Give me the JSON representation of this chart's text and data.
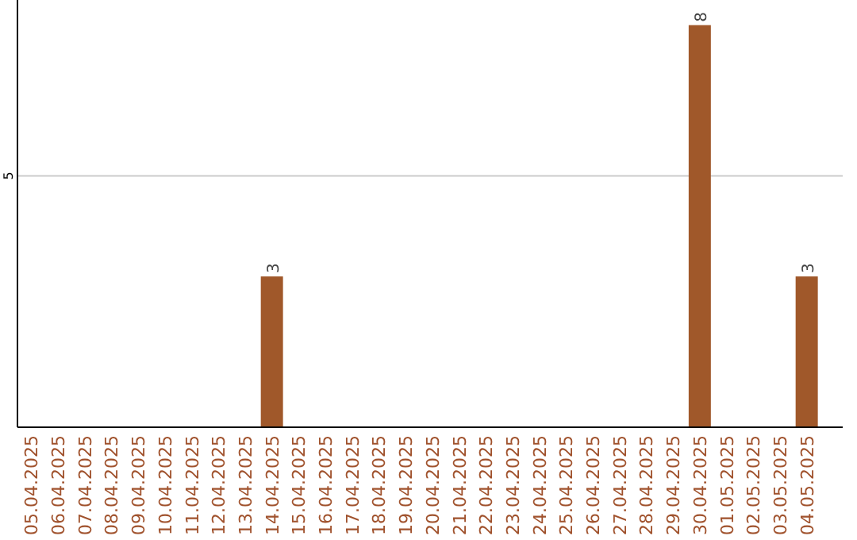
{
  "chart_data": {
    "type": "bar",
    "categories": [
      "05.04.2025",
      "06.04.2025",
      "07.04.2025",
      "08.04.2025",
      "09.04.2025",
      "10.04.2025",
      "11.04.2025",
      "12.04.2025",
      "13.04.2025",
      "14.04.2025",
      "15.04.2025",
      "16.04.2025",
      "17.04.2025",
      "18.04.2025",
      "19.04.2025",
      "20.04.2025",
      "21.04.2025",
      "22.04.2025",
      "23.04.2025",
      "24.04.2025",
      "25.04.2025",
      "26.04.2025",
      "27.04.2025",
      "28.04.2025",
      "29.04.2025",
      "30.04.2025",
      "01.05.2025",
      "02.05.2025",
      "03.05.2025",
      "04.05.2025"
    ],
    "values": [
      0,
      0,
      0,
      0,
      0,
      0,
      0,
      0,
      0,
      3,
      0,
      0,
      0,
      0,
      0,
      0,
      0,
      0,
      0,
      0,
      0,
      0,
      0,
      0,
      0,
      8,
      0,
      0,
      0,
      3
    ],
    "value_labels": [
      null,
      null,
      null,
      null,
      null,
      null,
      null,
      null,
      null,
      "3",
      null,
      null,
      null,
      null,
      null,
      null,
      null,
      null,
      null,
      null,
      null,
      null,
      null,
      null,
      null,
      "8",
      null,
      null,
      null,
      "3"
    ],
    "color": "#a0582a",
    "ylim": [
      0,
      8.5
    ],
    "yticks": [
      5
    ],
    "grid": "y"
  }
}
